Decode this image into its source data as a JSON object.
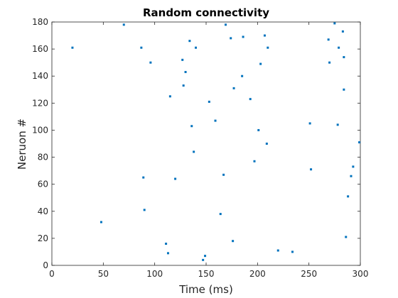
{
  "chart_data": {
    "type": "scatter",
    "title": "Random connectivity",
    "xlabel": "Time (ms)",
    "ylabel": "Neruon #",
    "xlim": [
      0,
      300
    ],
    "ylim": [
      0,
      180
    ],
    "xticks": [
      0,
      50,
      100,
      150,
      200,
      250,
      300
    ],
    "yticks": [
      0,
      20,
      40,
      60,
      80,
      100,
      120,
      140,
      160,
      180
    ],
    "grid": false,
    "marker_color": "#0072BD",
    "points": [
      {
        "x": 20,
        "y": 161
      },
      {
        "x": 48,
        "y": 32
      },
      {
        "x": 70,
        "y": 178
      },
      {
        "x": 87,
        "y": 161
      },
      {
        "x": 89,
        "y": 65
      },
      {
        "x": 90,
        "y": 41
      },
      {
        "x": 96,
        "y": 150
      },
      {
        "x": 111,
        "y": 16
      },
      {
        "x": 113,
        "y": 9
      },
      {
        "x": 115,
        "y": 125
      },
      {
        "x": 120,
        "y": 64
      },
      {
        "x": 127,
        "y": 152
      },
      {
        "x": 128,
        "y": 133
      },
      {
        "x": 130,
        "y": 143
      },
      {
        "x": 134,
        "y": 166
      },
      {
        "x": 136,
        "y": 103
      },
      {
        "x": 138,
        "y": 84
      },
      {
        "x": 140,
        "y": 161
      },
      {
        "x": 147,
        "y": 4
      },
      {
        "x": 149,
        "y": 7
      },
      {
        "x": 153,
        "y": 121
      },
      {
        "x": 159,
        "y": 107
      },
      {
        "x": 164,
        "y": 38
      },
      {
        "x": 167,
        "y": 67
      },
      {
        "x": 169,
        "y": 178
      },
      {
        "x": 174,
        "y": 168
      },
      {
        "x": 176,
        "y": 18
      },
      {
        "x": 177,
        "y": 131
      },
      {
        "x": 185,
        "y": 140
      },
      {
        "x": 186,
        "y": 169
      },
      {
        "x": 193,
        "y": 123
      },
      {
        "x": 197,
        "y": 77
      },
      {
        "x": 201,
        "y": 100
      },
      {
        "x": 203,
        "y": 149
      },
      {
        "x": 207,
        "y": 170
      },
      {
        "x": 209,
        "y": 90
      },
      {
        "x": 210,
        "y": 161
      },
      {
        "x": 220,
        "y": 11
      },
      {
        "x": 234,
        "y": 10
      },
      {
        "x": 251,
        "y": 105
      },
      {
        "x": 252,
        "y": 71
      },
      {
        "x": 269,
        "y": 167
      },
      {
        "x": 270,
        "y": 150
      },
      {
        "x": 275,
        "y": 179
      },
      {
        "x": 278,
        "y": 104
      },
      {
        "x": 279,
        "y": 161
      },
      {
        "x": 283,
        "y": 173
      },
      {
        "x": 284,
        "y": 154
      },
      {
        "x": 284,
        "y": 130
      },
      {
        "x": 286,
        "y": 21
      },
      {
        "x": 288,
        "y": 51
      },
      {
        "x": 291,
        "y": 66
      },
      {
        "x": 293,
        "y": 73
      },
      {
        "x": 299,
        "y": 91
      }
    ]
  }
}
